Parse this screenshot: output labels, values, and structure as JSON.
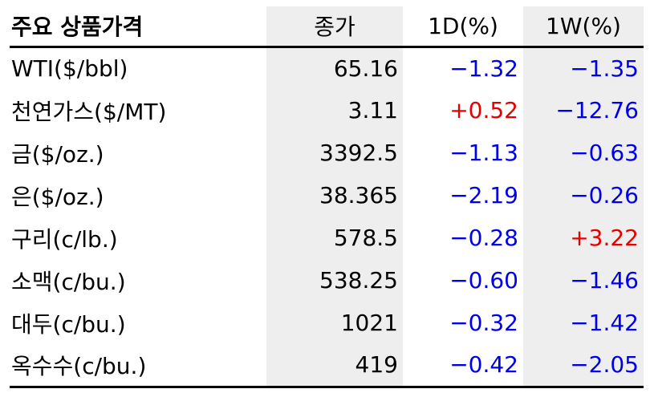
{
  "table": {
    "headers": [
      "주요 상품가격",
      "종가",
      "1D(%)",
      "1W(%)"
    ],
    "rows": [
      {
        "name": "WTI($/bbl)",
        "close": "65.16",
        "d1": "−1.32",
        "w1": "−1.35"
      },
      {
        "name": "천연가스($/MT)",
        "close": "3.11",
        "d1": "+0.52",
        "w1": "−12.76"
      },
      {
        "name": "금($/oz.)",
        "close": "3392.5",
        "d1": "−1.13",
        "w1": "−0.63"
      },
      {
        "name": "은($/oz.)",
        "close": "38.365",
        "d1": "−2.19",
        "w1": "−0.26"
      },
      {
        "name": "구리(c/lb.)",
        "close": "578.5",
        "d1": "−0.28",
        "w1": "+3.22"
      },
      {
        "name": "소맥(c/bu.)",
        "close": "538.25",
        "d1": "−0.60",
        "w1": "−1.46"
      },
      {
        "name": "대두(c/bu.)",
        "close": "1021",
        "d1": "−0.32",
        "w1": "−1.42"
      },
      {
        "name": "옥수수(c/bu.)",
        "close": "419",
        "d1": "−0.42",
        "w1": "−2.05"
      }
    ]
  },
  "colors": {
    "negative": "#0000e6",
    "positive": "#e60000",
    "shade": "#eeeeee"
  }
}
